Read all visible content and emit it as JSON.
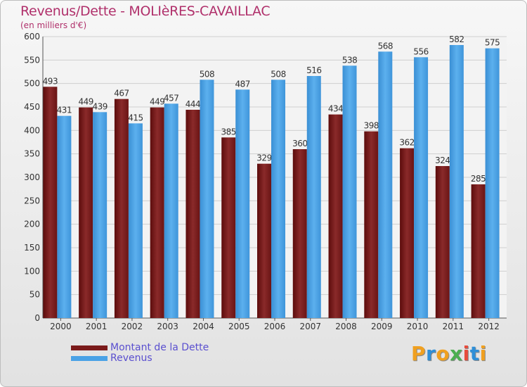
{
  "title": "Revenus/Dette - MOLIèRES-CAVAILLAC",
  "subtitle": "(en milliers d'€)",
  "chart_data": {
    "type": "bar",
    "categories": [
      "2000",
      "2001",
      "2002",
      "2003",
      "2004",
      "2005",
      "2006",
      "2007",
      "2008",
      "2009",
      "2010",
      "2011",
      "2012"
    ],
    "series": [
      {
        "name": "Montant de la Dette",
        "color": "#7a1a1a",
        "values": [
          493,
          449,
          467,
          449,
          444,
          385,
          329,
          360,
          434,
          398,
          362,
          324,
          285
        ]
      },
      {
        "name": "Revenus",
        "color": "#4aa2e6",
        "values": [
          431,
          439,
          415,
          457,
          508,
          487,
          508,
          516,
          538,
          568,
          556,
          582,
          575
        ]
      }
    ],
    "ylim": [
      0,
      600
    ],
    "yticks": [
      0,
      50,
      100,
      150,
      200,
      250,
      300,
      350,
      400,
      450,
      500,
      550,
      600
    ],
    "grid": true,
    "legend_position": "bottom-left"
  },
  "brand": {
    "letters": [
      "P",
      "r",
      "o",
      "x",
      "i",
      "t",
      "i"
    ],
    "colors": [
      "#f0a020",
      "#2f8fd8",
      "#f0a020",
      "#4caf50",
      "#e74c3c",
      "#2f8fd8",
      "#f0a020"
    ]
  }
}
